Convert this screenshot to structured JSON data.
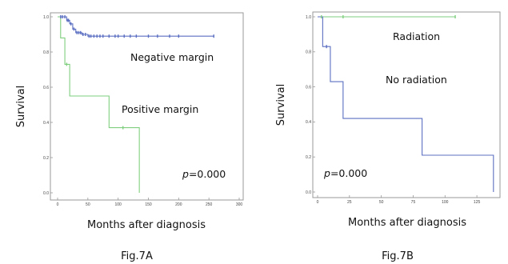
{
  "colors": {
    "series_blue": "#5b6fc2",
    "series_green": "#7fcf7f",
    "frame": "#999999"
  },
  "chart_data": [
    {
      "type": "line",
      "subtype": "kaplan-meier",
      "figure_label": "Fig.7A",
      "xlabel": "Months after diagnosis",
      "ylabel": "Survival",
      "xlim": [
        0,
        300
      ],
      "ylim": [
        0,
        1
      ],
      "x_ticks": [
        0,
        50,
        100,
        150,
        200,
        250,
        300
      ],
      "y_ticks": [
        0.0,
        0.2,
        0.4,
        0.6,
        0.8,
        1.0
      ],
      "x_tick_labels": [
        "0",
        "50",
        "100",
        "150",
        "200",
        "250",
        "300"
      ],
      "y_tick_labels": [
        "0.0",
        "0.2",
        "0.4",
        "0.6",
        "0.8",
        "1.0"
      ],
      "grid": false,
      "p_value_prefix": "p",
      "p_value_rest": "=0.000",
      "series": [
        {
          "name": "Negative margin",
          "color": "#5b6fc2",
          "steps": [
            [
              0,
              1.0
            ],
            [
              15,
              0.98
            ],
            [
              20,
              0.96
            ],
            [
              25,
              0.93
            ],
            [
              30,
              0.91
            ],
            [
              40,
              0.9
            ],
            [
              50,
              0.89
            ],
            [
              258,
              0.89
            ]
          ],
          "censors": [
            [
              5,
              1.0
            ],
            [
              8,
              1.0
            ],
            [
              12,
              1.0
            ],
            [
              16,
              0.98
            ],
            [
              18,
              0.98
            ],
            [
              22,
              0.96
            ],
            [
              27,
              0.93
            ],
            [
              32,
              0.91
            ],
            [
              35,
              0.91
            ],
            [
              38,
              0.91
            ],
            [
              42,
              0.9
            ],
            [
              46,
              0.9
            ],
            [
              52,
              0.89
            ],
            [
              55,
              0.89
            ],
            [
              60,
              0.89
            ],
            [
              65,
              0.89
            ],
            [
              70,
              0.89
            ],
            [
              75,
              0.89
            ],
            [
              85,
              0.89
            ],
            [
              95,
              0.89
            ],
            [
              100,
              0.89
            ],
            [
              110,
              0.89
            ],
            [
              120,
              0.89
            ],
            [
              130,
              0.89
            ],
            [
              150,
              0.89
            ],
            [
              165,
              0.89
            ],
            [
              185,
              0.89
            ],
            [
              200,
              0.89
            ],
            [
              258,
              0.89
            ]
          ]
        },
        {
          "name": "Positive margin",
          "color": "#7fcf7f",
          "steps": [
            [
              0,
              1.0
            ],
            [
              5,
              0.88
            ],
            [
              12,
              0.73
            ],
            [
              20,
              0.55
            ],
            [
              85,
              0.37
            ],
            [
              135,
              0.0
            ]
          ],
          "censors": [
            [
              15,
              0.73
            ],
            [
              108,
              0.37
            ]
          ]
        }
      ]
    },
    {
      "type": "line",
      "subtype": "kaplan-meier",
      "figure_label": "Fig.7B",
      "xlabel": "Months after diagnosis",
      "ylabel": "Survival",
      "xlim": [
        0,
        140
      ],
      "ylim": [
        0,
        1
      ],
      "x_ticks": [
        0,
        25,
        50,
        75,
        100,
        125
      ],
      "y_ticks": [
        0.0,
        0.2,
        0.4,
        0.6,
        0.8,
        1.0
      ],
      "x_tick_labels": [
        "0",
        "25",
        "50",
        "75",
        "100",
        "125"
      ],
      "y_tick_labels": [
        "0.0",
        "0.2",
        "0.4",
        "0.6",
        "0.8",
        "1.0"
      ],
      "grid": false,
      "p_value_prefix": "p",
      "p_value_rest": "=0.000",
      "series": [
        {
          "name": "Radiation",
          "color": "#7fcf7f",
          "steps": [
            [
              0,
              1.0
            ],
            [
              108,
              1.0
            ]
          ],
          "censors": [
            [
              3,
              1.0
            ],
            [
              20,
              1.0
            ],
            [
              108,
              1.0
            ]
          ]
        },
        {
          "name": "No radiation",
          "color": "#5b6fc2",
          "steps": [
            [
              0,
              1.0
            ],
            [
              4,
              0.83
            ],
            [
              10,
              0.63
            ],
            [
              20,
              0.42
            ],
            [
              82,
              0.21
            ],
            [
              138,
              0.0
            ]
          ],
          "censors": [
            [
              7,
              0.83
            ]
          ]
        }
      ]
    }
  ]
}
